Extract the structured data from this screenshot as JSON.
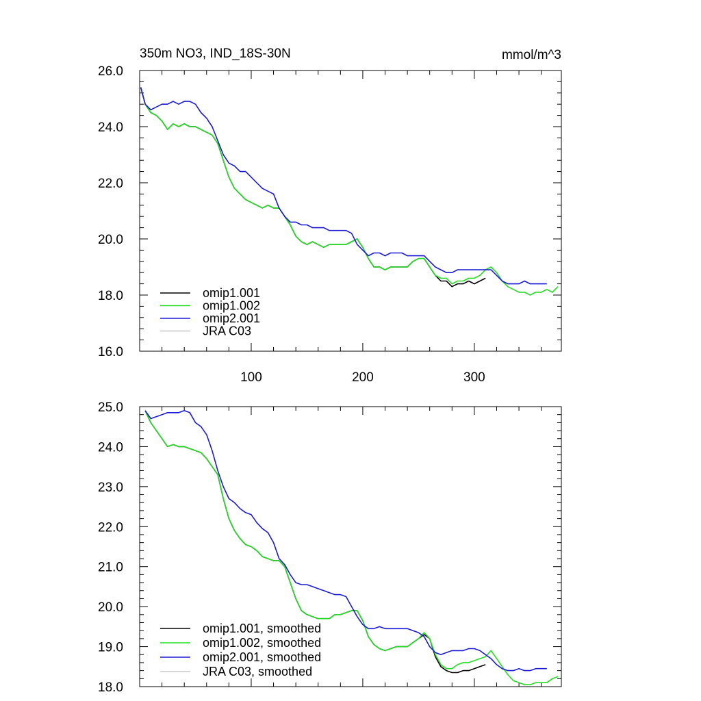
{
  "chart_data": [
    {
      "type": "line",
      "title": "350m NO3, IND_18S-30N",
      "units": "mmol/m^3",
      "xlim": [
        0,
        378
      ],
      "ylim": [
        16,
        26
      ],
      "x_ticks": [
        100,
        200,
        300
      ],
      "x_tick_labels": [
        "100",
        "200",
        "300"
      ],
      "y_ticks": [
        16,
        18,
        20,
        22,
        24,
        26
      ],
      "y_tick_labels": [
        "16.0",
        "18.0",
        "20.0",
        "22.0",
        "24.0",
        "26.0"
      ],
      "grid": false,
      "legend_position": "bottom-left",
      "series": [
        {
          "name": "omip1.001",
          "color": "#000000",
          "x": [
            1,
            5,
            10,
            15,
            20,
            25,
            30,
            35,
            40,
            45,
            50,
            55,
            60,
            65,
            70,
            75,
            80,
            85,
            90,
            95,
            100,
            105,
            110,
            115,
            120,
            125,
            130,
            135,
            140,
            145,
            150,
            155,
            160,
            165,
            170,
            175,
            180,
            185,
            190,
            195,
            200,
            205,
            210,
            215,
            220,
            225,
            230,
            235,
            240,
            245,
            250,
            255,
            260,
            265,
            270,
            275,
            280,
            285,
            290,
            295,
            300,
            305,
            310
          ],
          "y": [
            25.4,
            24.8,
            24.5,
            24.4,
            24.2,
            23.9,
            24.1,
            24.0,
            24.1,
            24.0,
            24.0,
            23.9,
            23.8,
            23.7,
            23.4,
            22.8,
            22.2,
            21.8,
            21.6,
            21.4,
            21.3,
            21.2,
            21.1,
            21.2,
            21.1,
            21.1,
            20.8,
            20.5,
            20.1,
            19.9,
            19.8,
            19.9,
            19.8,
            19.7,
            19.8,
            19.8,
            19.8,
            19.8,
            19.9,
            20.0,
            19.7,
            19.3,
            19.0,
            19.0,
            18.9,
            19.0,
            19.0,
            19.0,
            19.0,
            19.2,
            19.3,
            19.3,
            19.0,
            18.7,
            18.5,
            18.5,
            18.3,
            18.4,
            18.4,
            18.5,
            18.4,
            18.5,
            18.6
          ]
        },
        {
          "name": "omip1.002",
          "color": "#22dd22",
          "x": [
            1,
            5,
            10,
            15,
            20,
            25,
            30,
            35,
            40,
            45,
            50,
            55,
            60,
            65,
            70,
            75,
            80,
            85,
            90,
            95,
            100,
            105,
            110,
            115,
            120,
            125,
            130,
            135,
            140,
            145,
            150,
            155,
            160,
            165,
            170,
            175,
            180,
            185,
            190,
            195,
            200,
            205,
            210,
            215,
            220,
            225,
            230,
            235,
            240,
            245,
            250,
            255,
            260,
            265,
            270,
            275,
            280,
            285,
            290,
            295,
            300,
            305,
            310,
            315,
            320,
            325,
            330,
            335,
            340,
            345,
            350,
            355,
            360,
            365,
            370,
            375
          ],
          "y": [
            25.4,
            24.8,
            24.5,
            24.4,
            24.2,
            23.9,
            24.1,
            24.0,
            24.1,
            24.0,
            24.0,
            23.9,
            23.8,
            23.7,
            23.4,
            22.8,
            22.2,
            21.8,
            21.6,
            21.4,
            21.3,
            21.2,
            21.1,
            21.2,
            21.1,
            21.1,
            20.8,
            20.5,
            20.1,
            19.9,
            19.8,
            19.9,
            19.8,
            19.7,
            19.8,
            19.8,
            19.8,
            19.8,
            19.9,
            20.0,
            19.7,
            19.3,
            19.0,
            19.0,
            18.9,
            19.0,
            19.0,
            19.0,
            19.0,
            19.2,
            19.3,
            19.3,
            19.0,
            18.7,
            18.6,
            18.6,
            18.4,
            18.5,
            18.5,
            18.6,
            18.6,
            18.7,
            18.9,
            19.0,
            18.8,
            18.5,
            18.3,
            18.2,
            18.1,
            18.1,
            18.0,
            18.1,
            18.1,
            18.2,
            18.1,
            18.3
          ]
        },
        {
          "name": "omip2.001",
          "color": "#1a1ad6",
          "x": [
            1,
            5,
            10,
            15,
            20,
            25,
            30,
            35,
            40,
            45,
            50,
            55,
            60,
            65,
            70,
            75,
            80,
            85,
            90,
            95,
            100,
            105,
            110,
            115,
            120,
            125,
            130,
            135,
            140,
            145,
            150,
            155,
            160,
            165,
            170,
            175,
            180,
            185,
            190,
            195,
            200,
            205,
            210,
            215,
            220,
            225,
            230,
            235,
            240,
            245,
            250,
            255,
            260,
            265,
            270,
            275,
            280,
            285,
            290,
            295,
            300,
            305,
            310,
            315,
            320,
            325,
            330,
            335,
            340,
            345,
            350,
            355,
            360,
            365
          ],
          "y": [
            25.4,
            24.8,
            24.6,
            24.7,
            24.8,
            24.8,
            24.9,
            24.8,
            24.9,
            24.9,
            24.8,
            24.5,
            24.3,
            24.0,
            23.5,
            23.0,
            22.7,
            22.6,
            22.4,
            22.4,
            22.2,
            22.0,
            21.8,
            21.7,
            21.6,
            21.1,
            20.8,
            20.6,
            20.6,
            20.5,
            20.5,
            20.4,
            20.4,
            20.4,
            20.3,
            20.3,
            20.3,
            20.3,
            20.2,
            19.8,
            19.6,
            19.4,
            19.5,
            19.5,
            19.4,
            19.5,
            19.5,
            19.5,
            19.4,
            19.4,
            19.4,
            19.4,
            19.2,
            19.0,
            18.9,
            18.8,
            18.8,
            18.9,
            18.9,
            18.9,
            18.9,
            18.9,
            18.9,
            18.9,
            18.7,
            18.5,
            18.4,
            18.4,
            18.4,
            18.5,
            18.4,
            18.4,
            18.4,
            18.4
          ]
        },
        {
          "name": "JRA C03",
          "color": "#c8c8c8",
          "x": [],
          "y": []
        }
      ]
    },
    {
      "type": "line",
      "title": "",
      "xlim": [
        0,
        378
      ],
      "ylim": [
        18,
        25
      ],
      "x_ticks": [
        100,
        200,
        300
      ],
      "x_tick_labels": [],
      "y_ticks": [
        18,
        19,
        20,
        21,
        22,
        23,
        24,
        25
      ],
      "y_tick_labels": [
        "18.0",
        "19.0",
        "20.0",
        "21.0",
        "22.0",
        "23.0",
        "24.0",
        "25.0"
      ],
      "grid": false,
      "legend_position": "bottom-left",
      "series": [
        {
          "name": "omip1.001, smoothed",
          "color": "#000000",
          "x": [
            5,
            10,
            15,
            20,
            25,
            30,
            35,
            40,
            45,
            50,
            55,
            60,
            65,
            70,
            75,
            80,
            85,
            90,
            95,
            100,
            105,
            110,
            115,
            120,
            125,
            130,
            135,
            140,
            145,
            150,
            155,
            160,
            165,
            170,
            175,
            180,
            185,
            190,
            195,
            200,
            205,
            210,
            215,
            220,
            225,
            230,
            235,
            240,
            245,
            250,
            255,
            260,
            265,
            270,
            275,
            280,
            285,
            290,
            295,
            300,
            305,
            310
          ],
          "y": [
            24.9,
            24.6,
            24.4,
            24.2,
            24.0,
            24.05,
            24.0,
            24.0,
            23.95,
            23.9,
            23.85,
            23.7,
            23.5,
            23.3,
            22.7,
            22.2,
            21.9,
            21.7,
            21.55,
            21.5,
            21.4,
            21.25,
            21.2,
            21.15,
            21.15,
            21.0,
            20.6,
            20.2,
            19.9,
            19.8,
            19.75,
            19.7,
            19.7,
            19.7,
            19.8,
            19.8,
            19.85,
            19.9,
            19.9,
            19.65,
            19.25,
            19.05,
            18.95,
            18.9,
            18.95,
            19.0,
            19.0,
            19.0,
            19.1,
            19.2,
            19.3,
            19.2,
            18.75,
            18.5,
            18.4,
            18.35,
            18.35,
            18.4,
            18.4,
            18.45,
            18.5,
            18.55
          ]
        },
        {
          "name": "omip1.002, smoothed",
          "color": "#22dd22",
          "x": [
            5,
            10,
            15,
            20,
            25,
            30,
            35,
            40,
            45,
            50,
            55,
            60,
            65,
            70,
            75,
            80,
            85,
            90,
            95,
            100,
            105,
            110,
            115,
            120,
            125,
            130,
            135,
            140,
            145,
            150,
            155,
            160,
            165,
            170,
            175,
            180,
            185,
            190,
            195,
            200,
            205,
            210,
            215,
            220,
            225,
            230,
            235,
            240,
            245,
            250,
            255,
            260,
            265,
            270,
            275,
            280,
            285,
            290,
            295,
            300,
            305,
            310,
            315,
            320,
            325,
            330,
            335,
            340,
            345,
            350,
            355,
            360,
            365,
            370,
            375
          ],
          "y": [
            24.9,
            24.6,
            24.4,
            24.2,
            24.0,
            24.05,
            24.0,
            24.0,
            23.95,
            23.9,
            23.85,
            23.7,
            23.5,
            23.3,
            22.7,
            22.2,
            21.9,
            21.7,
            21.55,
            21.5,
            21.4,
            21.25,
            21.2,
            21.15,
            21.15,
            21.0,
            20.6,
            20.2,
            19.9,
            19.8,
            19.75,
            19.7,
            19.7,
            19.7,
            19.8,
            19.8,
            19.85,
            19.9,
            19.9,
            19.65,
            19.25,
            19.05,
            18.95,
            18.9,
            18.95,
            19.0,
            19.0,
            19.0,
            19.1,
            19.2,
            19.35,
            19.2,
            18.8,
            18.55,
            18.45,
            18.45,
            18.55,
            18.6,
            18.6,
            18.65,
            18.7,
            18.75,
            18.9,
            18.7,
            18.5,
            18.3,
            18.15,
            18.1,
            18.05,
            18.05,
            18.1,
            18.1,
            18.1,
            18.2,
            18.25
          ]
        },
        {
          "name": "omip2.001, smoothed",
          "color": "#1a1ad6",
          "x": [
            5,
            10,
            15,
            20,
            25,
            30,
            35,
            40,
            45,
            50,
            55,
            60,
            65,
            70,
            75,
            80,
            85,
            90,
            95,
            100,
            105,
            110,
            115,
            120,
            125,
            130,
            135,
            140,
            145,
            150,
            155,
            160,
            165,
            170,
            175,
            180,
            185,
            190,
            195,
            200,
            205,
            210,
            215,
            220,
            225,
            230,
            235,
            240,
            245,
            250,
            255,
            260,
            265,
            270,
            275,
            280,
            285,
            290,
            295,
            300,
            305,
            310,
            315,
            320,
            325,
            330,
            335,
            340,
            345,
            350,
            355,
            360,
            365
          ],
          "y": [
            24.9,
            24.7,
            24.75,
            24.8,
            24.85,
            24.85,
            24.85,
            24.9,
            24.85,
            24.6,
            24.5,
            24.3,
            23.9,
            23.4,
            23.0,
            22.7,
            22.6,
            22.45,
            22.35,
            22.3,
            22.1,
            21.95,
            21.85,
            21.6,
            21.2,
            21.05,
            20.8,
            20.6,
            20.55,
            20.55,
            20.5,
            20.45,
            20.4,
            20.35,
            20.3,
            20.3,
            20.25,
            20.0,
            19.75,
            19.55,
            19.45,
            19.45,
            19.5,
            19.45,
            19.45,
            19.45,
            19.45,
            19.45,
            19.4,
            19.35,
            19.25,
            19.0,
            18.85,
            18.8,
            18.85,
            18.9,
            18.9,
            18.9,
            18.95,
            18.95,
            18.9,
            18.8,
            18.7,
            18.55,
            18.45,
            18.4,
            18.4,
            18.45,
            18.4,
            18.4,
            18.45,
            18.45,
            18.45
          ]
        },
        {
          "name": "JRA C03, smoothed",
          "color": "#c8c8c8",
          "x": [],
          "y": []
        }
      ]
    }
  ]
}
